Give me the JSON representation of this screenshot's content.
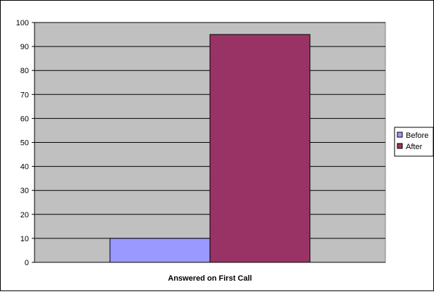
{
  "chart_data": {
    "type": "bar",
    "categories": [
      "Answered on First Call"
    ],
    "series": [
      {
        "name": "Before",
        "values": [
          10
        ],
        "color": "#9999ff"
      },
      {
        "name": "After",
        "values": [
          95
        ],
        "color": "#993366"
      }
    ],
    "xlabel": "Answered on First Call",
    "ylabel": "",
    "ylim": [
      0,
      100
    ],
    "ytick_step": 10,
    "y_ticks": [
      "0",
      "10",
      "20",
      "30",
      "40",
      "50",
      "60",
      "70",
      "80",
      "90",
      "100"
    ],
    "grid": true,
    "legend_position": "right",
    "plot_background": "#c0c0c0"
  }
}
